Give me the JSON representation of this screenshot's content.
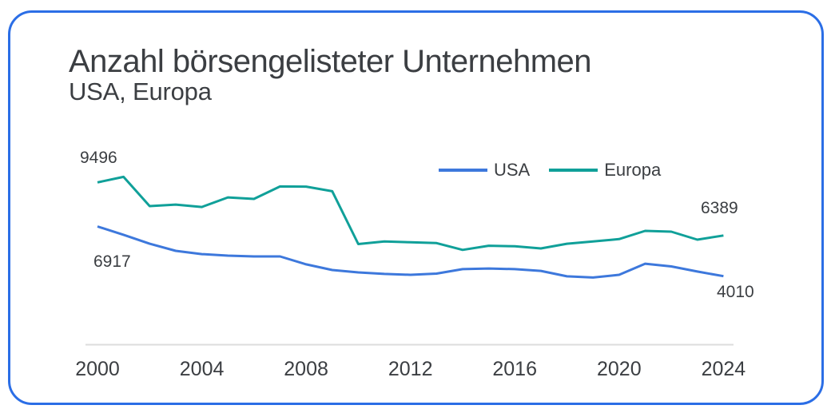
{
  "card": {
    "title": "Anzahl börsengelisteter Unternehmen",
    "subtitle": "USA, Europa",
    "border_color": "#2B6EE6"
  },
  "chart_data": {
    "type": "line",
    "title": "Anzahl börsengelisteter Unternehmen",
    "subtitle": "USA, Europa",
    "x": [
      2000,
      2001,
      2002,
      2003,
      2004,
      2005,
      2006,
      2007,
      2008,
      2009,
      2010,
      2011,
      2012,
      2013,
      2014,
      2015,
      2016,
      2017,
      2018,
      2019,
      2020,
      2021,
      2022,
      2023,
      2024
    ],
    "xticks": [
      "2000",
      "2004",
      "2008",
      "2012",
      "2016",
      "2020",
      "2024"
    ],
    "ylim": [
      0,
      10500
    ],
    "grid": false,
    "legend_position": "top-right",
    "axis_color": "#DDDDDD",
    "series": [
      {
        "name": "USA",
        "color": "#3D78DC",
        "values": [
          6917,
          6430,
          5910,
          5490,
          5300,
          5210,
          5165,
          5165,
          4700,
          4370,
          4230,
          4140,
          4090,
          4160,
          4420,
          4460,
          4420,
          4320,
          4000,
          3930,
          4090,
          4740,
          4580,
          4280,
          4010
        ]
      },
      {
        "name": "Europa",
        "color": "#10A099",
        "values": [
          9496,
          9820,
          8110,
          8200,
          8060,
          8620,
          8530,
          9260,
          9250,
          8980,
          5890,
          6040,
          5990,
          5945,
          5550,
          5790,
          5760,
          5630,
          5910,
          6040,
          6180,
          6660,
          6615,
          6145,
          6389
        ]
      }
    ],
    "point_labels": [
      {
        "text": "9496",
        "series": "Europa",
        "year": 2000,
        "position": "above-start"
      },
      {
        "text": "6917",
        "series": "USA",
        "year": 2000,
        "position": "below-start"
      },
      {
        "text": "6389",
        "series": "Europa",
        "year": 2024,
        "position": "above-end"
      },
      {
        "text": "4010",
        "series": "USA",
        "year": 2024,
        "position": "below-end"
      }
    ]
  }
}
